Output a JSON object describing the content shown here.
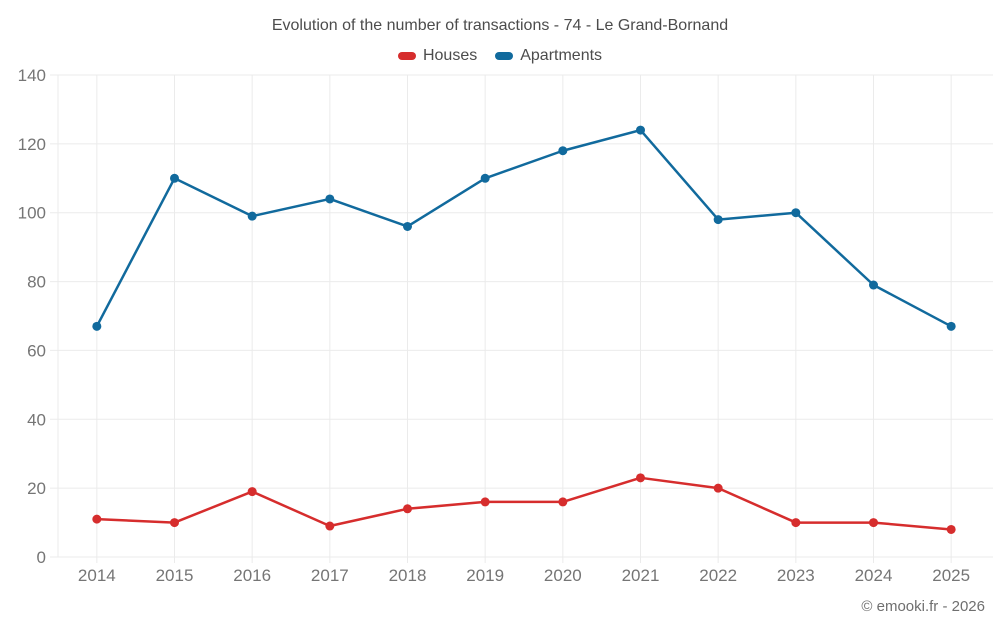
{
  "title": "Evolution of the number of transactions - 74 - Le Grand-Bornand",
  "footer": "© emooki.fr - 2026",
  "colors": {
    "houses": "#d62d2d",
    "apartments": "#116a9d",
    "grid": "#ebebeb",
    "tick_label": "#757575",
    "title_text": "#4c4c4c",
    "footer_text": "#6f6f6f",
    "background": "#ffffff"
  },
  "legend": {
    "items": [
      {
        "label": "Houses",
        "color": "#d62d2d"
      },
      {
        "label": "Apartments",
        "color": "#116a9d"
      }
    ]
  },
  "chart_data": {
    "type": "line",
    "title": "Evolution of the number of transactions - 74 - Le Grand-Bornand",
    "categories": [
      "2014",
      "2015",
      "2016",
      "2017",
      "2018",
      "2019",
      "2020",
      "2021",
      "2022",
      "2023",
      "2024",
      "2025"
    ],
    "series": [
      {
        "name": "Houses",
        "color": "#d62d2d",
        "values": [
          11,
          10,
          19,
          9,
          14,
          16,
          16,
          23,
          20,
          10,
          10,
          8
        ]
      },
      {
        "name": "Apartments",
        "color": "#116a9d",
        "values": [
          67,
          110,
          99,
          104,
          96,
          110,
          118,
          124,
          98,
          100,
          79,
          67
        ]
      }
    ],
    "xlabel": "",
    "ylabel": "",
    "ylim": [
      0,
      140
    ],
    "yticks": [
      0,
      20,
      40,
      60,
      80,
      100,
      120,
      140
    ],
    "grid": true,
    "legend_position": "top",
    "marker": "circle"
  }
}
